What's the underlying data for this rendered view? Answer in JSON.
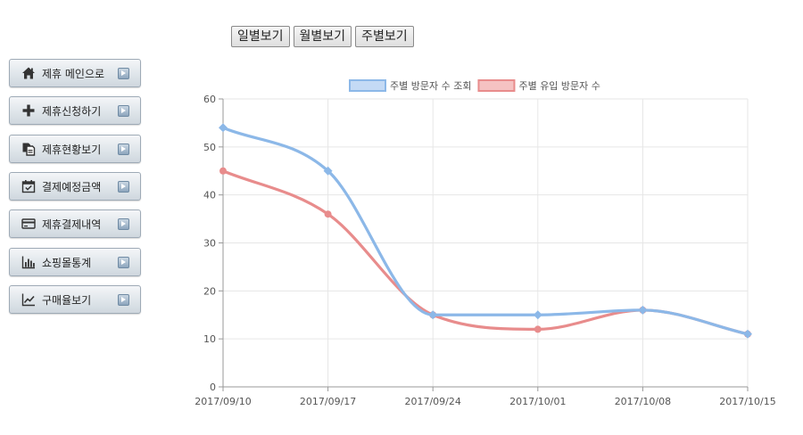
{
  "period_buttons": [
    {
      "label": "일별보기"
    },
    {
      "label": "월별보기"
    },
    {
      "label": "주별보기"
    }
  ],
  "sidebar": {
    "items": [
      {
        "label": "제휴 메인으로",
        "icon": "home-icon"
      },
      {
        "label": "제휴신청하기",
        "icon": "plus-icon"
      },
      {
        "label": "제휴현황보기",
        "icon": "documents-icon"
      },
      {
        "label": "결제예정금액",
        "icon": "calendar-check-icon"
      },
      {
        "label": "제휴결제내역",
        "icon": "credit-card-icon"
      },
      {
        "label": "쇼핑몰통계",
        "icon": "bar-chart-icon"
      },
      {
        "label": "구매율보기",
        "icon": "line-chart-icon"
      }
    ]
  },
  "chart_data": {
    "type": "line",
    "categories": [
      "2017/09/10",
      "2017/09/17",
      "2017/09/24",
      "2017/10/01",
      "2017/10/08",
      "2017/10/15"
    ],
    "series": [
      {
        "name": "주별 방문자 수 조회",
        "values": [
          54,
          45,
          15,
          15,
          16,
          11
        ],
        "color": "#8cb8e8",
        "fill": "#c4daf5",
        "marker": "diamond"
      },
      {
        "name": "주별 유입 방문자 수",
        "values": [
          45,
          36,
          15,
          12,
          16,
          11
        ],
        "color": "#e88c8c",
        "fill": "#f5c2c2",
        "marker": "circle"
      }
    ],
    "ylim": [
      0,
      60
    ],
    "yticks": [
      "0",
      "10",
      "20",
      "30",
      "40",
      "50",
      "60"
    ],
    "grid": true,
    "legend": "top",
    "smooth": true,
    "title": "",
    "xlabel": "",
    "ylabel": ""
  }
}
